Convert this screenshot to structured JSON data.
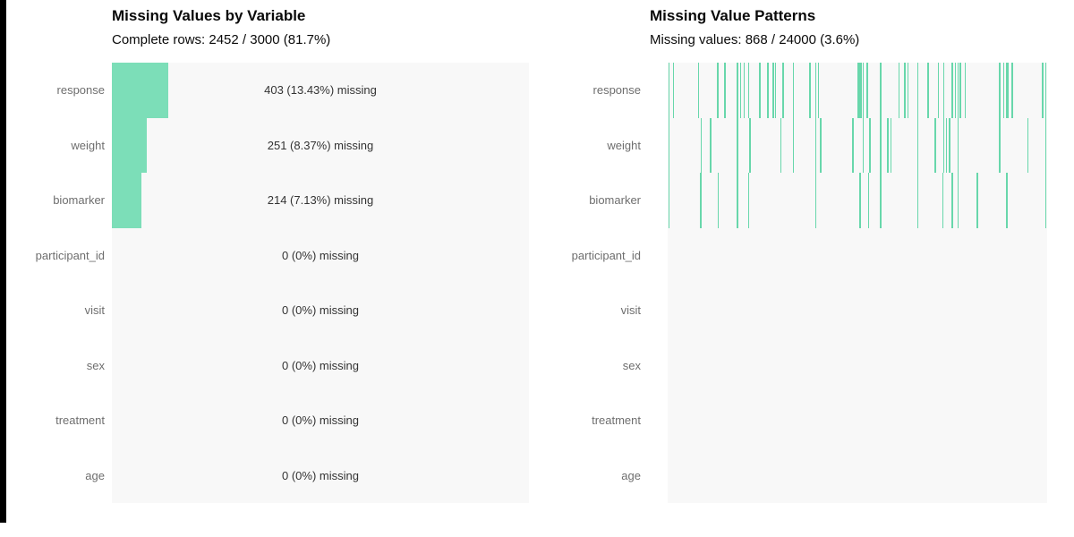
{
  "colors": {
    "bar_green": "#7CDEB8",
    "tick_green": "#68D7AB",
    "panel_background": "#F8F8F8",
    "row_label_gray": "#6E6E6E",
    "value_label_dark": "#333333",
    "title_black": "#0A0A0A",
    "left_edge_bar": "#000000"
  },
  "chart_data": [
    {
      "type": "bar",
      "orientation": "horizontal",
      "title": "Missing Values by Variable",
      "subtitle": "Complete rows: 2452 / 3000 (81.7%)",
      "categories": [
        "response",
        "weight",
        "biomarker",
        "participant_id",
        "visit",
        "sex",
        "treatment",
        "age"
      ],
      "values_pct_missing": [
        13.43,
        8.37,
        7.13,
        0,
        0,
        0,
        0,
        0
      ],
      "counts_missing": [
        403,
        251,
        214,
        0,
        0,
        0,
        0,
        0
      ],
      "bar_labels": [
        "403 (13.43%) missing",
        "251 (8.37%) missing",
        "214 (7.13%) missing",
        "0 (0%) missing",
        "0 (0%) missing",
        "0 (0%) missing",
        "0 (0%) missing",
        "0 (0%) missing"
      ],
      "xlim": [
        0,
        100
      ],
      "total_rows": 3000,
      "complete_rows": 2452,
      "grid": false,
      "legend": false
    },
    {
      "type": "heatmap",
      "title": "Missing Value Patterns",
      "subtitle": "Missing values: 868 / 24000 (3.6%)",
      "categories": [
        "response",
        "weight",
        "biomarker",
        "participant_id",
        "visit",
        "sex",
        "treatment",
        "age"
      ],
      "x_range_fraction": [
        0,
        1
      ],
      "total_cells": 24000,
      "missing_cells": 868,
      "grid": false,
      "legend": false,
      "missing_positions": {
        "response": [
          0.002,
          0.014,
          0.08,
          0.13,
          0.149,
          0.182,
          0.191,
          0.2,
          0.212,
          0.241,
          0.262,
          0.276,
          0.283,
          0.302,
          0.33,
          0.373,
          0.389,
          0.396,
          0.5,
          0.505,
          0.509,
          0.514,
          0.524,
          0.559,
          0.608,
          0.623,
          0.632,
          0.658,
          0.684,
          0.712,
          0.726,
          0.748,
          0.757,
          0.764,
          0.769,
          0.783,
          0.873,
          0.884,
          0.892,
          0.896,
          0.906,
          0.986,
          0.995
        ],
        "weight": [
          0.002,
          0.087,
          0.111,
          0.182,
          0.215,
          0.297,
          0.33,
          0.389,
          0.401,
          0.486,
          0.514,
          0.531,
          0.559,
          0.578,
          0.587,
          0.658,
          0.703,
          0.726,
          0.733,
          0.741,
          0.764,
          0.873,
          0.948,
          0.995
        ],
        "biomarker": [
          0.002,
          0.085,
          0.132,
          0.182,
          0.212,
          0.389,
          0.505,
          0.528,
          0.559,
          0.658,
          0.724,
          0.748,
          0.764,
          0.814,
          0.892,
          0.995
        ],
        "participant_id": [],
        "visit": [],
        "sex": [],
        "treatment": [],
        "age": []
      }
    }
  ]
}
